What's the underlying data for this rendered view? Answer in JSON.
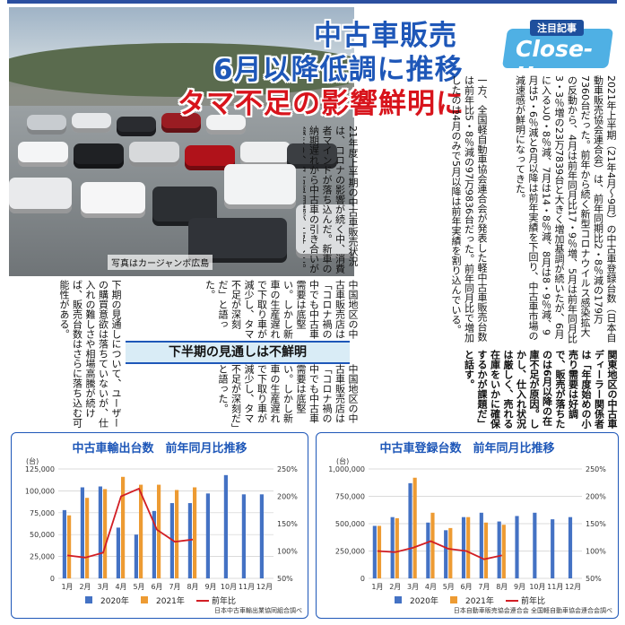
{
  "headline": {
    "line1": "中古車販売",
    "line2": "6月以降低調に推移",
    "line3": "タマ不足の影響鮮明に"
  },
  "badge": {
    "tag": "注目記事",
    "word": "Close-Up"
  },
  "photo_caption": "写真はカージャンボ広島",
  "subhead": "下半期の見通しは不鮮明",
  "article": {
    "col_a": "2021年上半期（21年4月〜9月）の中古車登録台数（日本自動車販売協会連合会）は、前年同期比2・8％減の179万7360台だった。前年から続く新型コロナウイルス感染拡大の反動から、4月は前年同月比17・9％増、5月は前年同月比3・3％増の23万7839台と大きく増加基調が続いたが、6月に入ると0・8％減、7月は14・8％減、8月は8・9％減、9月は5・6％減と6月以降は前年実績を下回り、中古車市場の減速感が鮮明になってきた。",
    "col_b": "一方、全国軽自動車協会連合会が発表した軽中古車販売台数は前年比5・8％減の97万9836台だった。前年同月比で増加したのは4月のみで5月以降は前年実績を割り込んでいる。",
    "col_c": "21年度上半期の中古車販売状況は、コロナの影響が続く中、消費者マインドが落ち込んだ。新車の納期遅れから中古車の引き合いが強まり、中古車相場が上昇した。",
    "col_d": "関東地区の中古車ディーラー関係者は「年度始めの小売り需要は好調で、販売が落ちたのは6月以降の在庫不足が原因。しかし、仕入れ状況は厳しく、売れる在庫をいかに確保するかが課題だ」と話す。",
    "col_e": "中国地区の中古車販売店は「コロナ禍の中でも中古車需要は底堅い。しかし新車の生産遅れで下取り車が減少し、タマ不足が深刻だ」と語った。",
    "col_f": "下期の見通しについて、ユーザーの購買意欲は落ちていないが、仕入れの難しさや相場高騰が続けば、販売台数はさらに落ち込む可能性がある。"
  },
  "chart_left": {
    "title": "中古車輸出台数　前年同月比推移",
    "source": "日本中古車輸出業協同組合調べ",
    "unit": "(台)"
  },
  "chart_right": {
    "title": "中古車登録台数　前年同月比推移",
    "source": "日本自動車販売協会連合会 全国軽自動車協会連合会調べ",
    "unit": "(台)"
  },
  "chart_data": [
    {
      "type": "bar",
      "title": "中古車輸出台数　前年同月比推移",
      "categories": [
        "1月",
        "2月",
        "3月",
        "4月",
        "5月",
        "6月",
        "7月",
        "8月",
        "9月",
        "10月",
        "11月",
        "12月"
      ],
      "series": [
        {
          "name": "2020年",
          "values": [
            78000,
            104000,
            105000,
            58000,
            50000,
            77000,
            86000,
            86000,
            97000,
            118000,
            96000,
            96000
          ]
        },
        {
          "name": "2021年",
          "values": [
            72000,
            92000,
            102000,
            116000,
            107000,
            107000,
            101000,
            104000,
            null,
            null,
            null,
            null
          ]
        },
        {
          "name": "前年比",
          "axis": "right",
          "values": [
            92,
            88,
            97,
            200,
            214,
            139,
            117,
            121,
            null,
            null,
            null,
            null
          ]
        }
      ],
      "ylim": [
        0,
        125000
      ],
      "yticks": [
        "0",
        "25,000",
        "50,000",
        "75,000",
        "100,000",
        "125,000"
      ],
      "y2lim": [
        50,
        250
      ],
      "y2ticks": [
        "50%",
        "100%",
        "150%",
        "200%",
        "250%"
      ],
      "legend": "bottom",
      "colors": {
        "2020年": "#4472c4",
        "2021年": "#ed9b33",
        "前年比": "#d21e24"
      }
    },
    {
      "type": "bar",
      "title": "中古車登録台数　前年同月比推移",
      "categories": [
        "1月",
        "2月",
        "3月",
        "4月",
        "5月",
        "6月",
        "7月",
        "8月",
        "9月",
        "10月",
        "11月",
        "12月"
      ],
      "series": [
        {
          "name": "2020年",
          "values": [
            480000,
            560000,
            870000,
            510000,
            440000,
            560000,
            600000,
            520000,
            570000,
            600000,
            540000,
            560000
          ]
        },
        {
          "name": "2021年",
          "values": [
            480000,
            550000,
            920000,
            600000,
            460000,
            560000,
            510000,
            490000,
            null,
            null,
            null,
            null
          ]
        },
        {
          "name": "前年比",
          "axis": "right",
          "values": [
            100,
            98,
            106,
            118,
            104,
            100,
            85,
            92,
            null,
            null,
            null,
            null
          ]
        }
      ],
      "ylim": [
        0,
        1000000
      ],
      "yticks": [
        "0",
        "250,000",
        "500,000",
        "750,000",
        "1,000,000"
      ],
      "y2lim": [
        50,
        250
      ],
      "y2ticks": [
        "50%",
        "100%",
        "150%",
        "200%",
        "250%"
      ],
      "legend": "bottom",
      "colors": {
        "2020年": "#4472c4",
        "2021年": "#ed9b33",
        "前年比": "#d21e24"
      }
    }
  ]
}
